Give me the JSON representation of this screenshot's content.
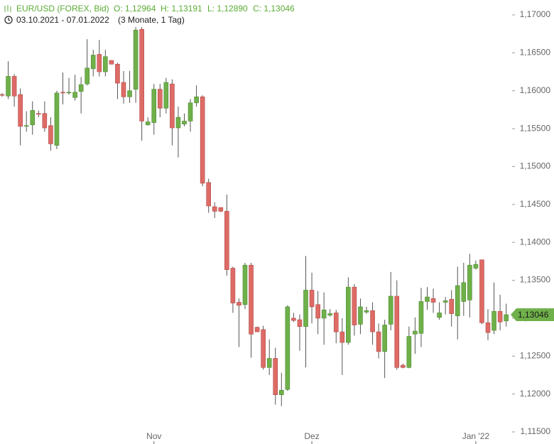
{
  "chart_data": {
    "type": "candlestick",
    "title": "EUR/USD (FOREX, Bid)",
    "ohlc_labels": [
      "O: 1,12964",
      "H: 1,13191",
      "L: 1,12890",
      "C: 1,13046"
    ],
    "date_range": "03.10.2021 - 07.01.2022",
    "period": "(3 Monate, 1 Tag)",
    "last_label": "1,13046",
    "up_color": "#6fb04a",
    "down_color": "#de6b66",
    "categories": [
      null,
      null,
      null,
      null,
      null,
      null,
      null,
      null,
      null,
      null,
      null,
      null,
      null,
      null,
      null,
      null,
      null,
      null,
      null,
      null,
      null,
      null,
      null,
      null,
      null,
      "Nov",
      null,
      null,
      null,
      null,
      null,
      null,
      null,
      null,
      null,
      null,
      null,
      null,
      null,
      null,
      null,
      null,
      null,
      null,
      null,
      null,
      null,
      null,
      null,
      null,
      null,
      "Dez",
      null,
      null,
      null,
      null,
      null,
      null,
      null,
      null,
      null,
      null,
      null,
      null,
      null,
      null,
      null,
      null,
      null,
      null,
      null,
      null,
      null,
      null,
      null,
      null,
      null,
      null,
      "Jan '22",
      null,
      null,
      null,
      null,
      null
    ],
    "open": [
      1.1595,
      1.1593,
      1.1619,
      1.1595,
      1.1554,
      1.1555,
      1.157,
      1.157,
      1.1554,
      1.1528,
      1.1598,
      1.1598,
      1.1591,
      1.1599,
      1.1609,
      1.1629,
      1.1648,
      1.1625,
      1.164,
      1.1635,
      1.1611,
      1.1592,
      1.1602,
      1.1681,
      1.1555,
      1.1558,
      1.1602,
      1.1577,
      1.1609,
      1.1551,
      1.1556,
      1.156,
      1.1584,
      1.1592,
      1.1479,
      1.1447,
      1.1446,
      1.1441,
      1.1366,
      1.1321,
      1.1318,
      1.137,
      1.1288,
      1.1285,
      1.1235,
      1.1247,
      1.1199,
      1.1206,
      1.13,
      1.1298,
      1.1289,
      1.1337,
      1.1318,
      1.13,
      1.1304,
      1.1307,
      1.1282,
      1.1268,
      1.1341,
      1.1292,
      1.1308,
      1.131,
      1.1282,
      1.1256,
      1.1292,
      1.1329,
      1.1238,
      1.1235,
      1.1279,
      1.128,
      1.1322,
      1.1326,
      1.1301,
      1.1321,
      1.1325,
      1.1303,
      1.1322,
      1.1324,
      1.1366,
      1.1377,
      1.1294,
      1.1284,
      1.1309,
      1.12964
    ],
    "high": [
      1.1597,
      1.1639,
      1.1622,
      1.1603,
      1.1573,
      1.1586,
      1.1574,
      1.1586,
      1.1565,
      1.16,
      1.1624,
      1.1617,
      1.1621,
      1.1618,
      1.1668,
      1.1654,
      1.1667,
      1.1654,
      1.164,
      1.1637,
      1.1626,
      1.1626,
      1.1684,
      1.1684,
      1.1565,
      1.1609,
      1.1609,
      1.1617,
      1.1615,
      1.1579,
      1.157,
      1.1589,
      1.1607,
      1.1594,
      1.1484,
      1.1453,
      1.1446,
      1.1463,
      1.1368,
      1.1326,
      1.1373,
      1.1373,
      1.1289,
      1.129,
      1.1272,
      1.1261,
      1.1228,
      1.1317,
      1.1307,
      1.1305,
      1.1382,
      1.136,
      1.1336,
      1.1334,
      1.1312,
      1.1311,
      1.13,
      1.1354,
      1.1345,
      1.1326,
      1.1315,
      1.1321,
      1.1293,
      1.1298,
      1.1361,
      1.135,
      1.124,
      1.1289,
      1.1301,
      1.134,
      1.1341,
      1.1339,
      1.1321,
      1.1328,
      1.1337,
      1.1368,
      1.1373,
      1.1385,
      1.1376,
      1.1377,
      1.1312,
      1.1347,
      1.1331,
      1.13191
    ],
    "low": [
      1.1592,
      1.1589,
      1.1579,
      1.1528,
      1.1546,
      1.1542,
      1.1565,
      1.1546,
      1.1521,
      1.1523,
      1.1582,
      1.1595,
      1.1587,
      1.157,
      1.1607,
      1.1619,
      1.1619,
      1.1619,
      1.1635,
      1.1589,
      1.1583,
      1.1584,
      1.1584,
      1.1534,
      1.1554,
      1.1542,
      1.1565,
      1.157,
      1.1528,
      1.1512,
      1.1553,
      1.1546,
      1.1579,
      1.1474,
      1.1439,
      1.1432,
      1.144,
      1.1356,
      1.1307,
      1.1262,
      1.1312,
      1.1248,
      1.1282,
      1.1232,
      1.1225,
      1.1186,
      1.1184,
      1.1204,
      1.1295,
      1.1257,
      1.1235,
      1.1293,
      1.1279,
      1.1265,
      1.1302,
      1.1267,
      1.1225,
      1.1265,
      1.1277,
      1.1279,
      1.1306,
      1.1265,
      1.1247,
      1.1221,
      1.1284,
      1.1232,
      1.1234,
      1.1234,
      1.1253,
      1.1262,
      1.1311,
      1.1307,
      1.1298,
      1.1305,
      1.1289,
      1.1272,
      1.1303,
      1.1301,
      1.1364,
      1.1292,
      1.1271,
      1.1279,
      1.1284,
      1.1289
    ],
    "close": [
      1.1594,
      1.1619,
      1.1593,
      1.1553,
      1.1554,
      1.1574,
      1.1569,
      1.1551,
      1.153,
      1.1597,
      1.1597,
      1.1598,
      1.1598,
      1.1608,
      1.163,
      1.1647,
      1.1625,
      1.1645,
      1.1635,
      1.161,
      1.1592,
      1.16,
      1.168,
      1.156,
      1.1559,
      1.1602,
      1.1577,
      1.1611,
      1.1551,
      1.1565,
      1.156,
      1.1584,
      1.1592,
      1.1478,
      1.1448,
      1.1441,
      1.1441,
      1.1364,
      1.132,
      1.1317,
      1.137,
      1.1279,
      1.1282,
      1.1235,
      1.1247,
      1.1199,
      1.1205,
      1.1315,
      1.1297,
      1.1289,
      1.1337,
      1.1315,
      1.13,
      1.1311,
      1.1306,
      1.1282,
      1.1268,
      1.1341,
      1.1291,
      1.1315,
      1.131,
      1.1282,
      1.1256,
      1.1291,
      1.1329,
      1.1235,
      1.1235,
      1.1276,
      1.1283,
      1.1322,
      1.1328,
      1.1321,
      1.1307,
      1.1323,
      1.1306,
      1.1343,
      1.1347,
      1.137,
      1.1371,
      1.1294,
      1.1281,
      1.1309,
      1.1295,
      1.13046
    ],
    "ylim": [
      1.115,
      1.17
    ],
    "yticks": [
      {
        "value": 1.115,
        "label": "1,11500"
      },
      {
        "value": 1.12,
        "label": "1,12000"
      },
      {
        "value": 1.125,
        "label": "1,12500"
      },
      {
        "value": 1.13,
        "label": "1,13000"
      },
      {
        "value": 1.135,
        "label": "1,13500"
      },
      {
        "value": 1.14,
        "label": "1,14000"
      },
      {
        "value": 1.145,
        "label": "1,14500"
      },
      {
        "value": 1.15,
        "label": "1,15000"
      },
      {
        "value": 1.155,
        "label": "1,15500"
      },
      {
        "value": 1.16,
        "label": "1,16000"
      },
      {
        "value": 1.165,
        "label": "1,16500"
      },
      {
        "value": 1.17,
        "label": "1,17000"
      }
    ]
  }
}
